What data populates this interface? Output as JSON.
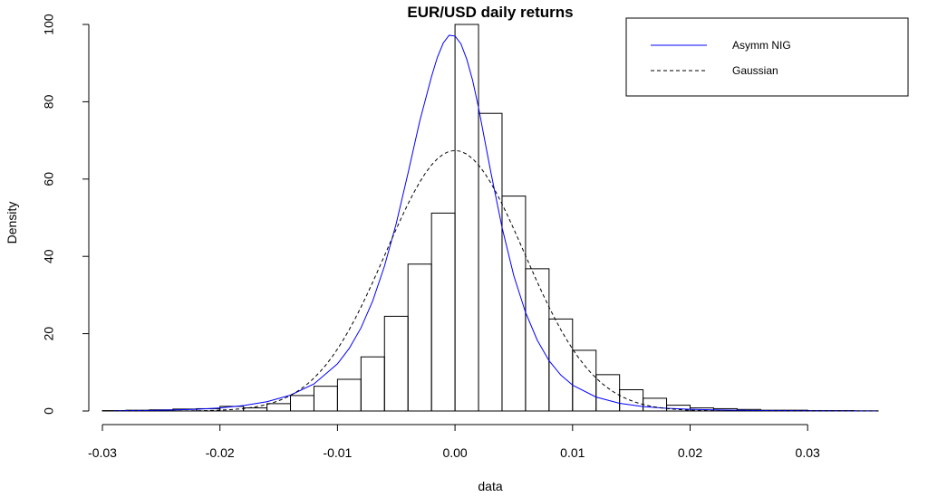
{
  "chart_data": {
    "type": "bar",
    "title": "EUR/USD daily returns",
    "xlabel": "data",
    "ylabel": "Density",
    "xlim": [
      -0.03,
      0.036
    ],
    "ylim": [
      0,
      100
    ],
    "x_ticks": [
      -0.03,
      -0.02,
      -0.01,
      0.0,
      0.01,
      0.02,
      0.03
    ],
    "x_tick_labels": [
      "-0.03",
      "-0.02",
      "-0.01",
      "0.00",
      "0.01",
      "0.02",
      "0.03"
    ],
    "y_ticks": [
      0,
      20,
      40,
      60,
      80,
      100
    ],
    "y_tick_labels": [
      "0",
      "20",
      "40",
      "60",
      "80",
      "100"
    ],
    "histogram": {
      "bin_width": 0.002,
      "bin_start": -0.03,
      "density": [
        0.1,
        0.2,
        0.3,
        0.5,
        0.6,
        1.2,
        0.8,
        1.9,
        4.0,
        6.4,
        8.2,
        14.0,
        24.5,
        38.0,
        51.2,
        100,
        77.0,
        55.6,
        36.8,
        23.8,
        15.7,
        9.4,
        5.5,
        3.3,
        1.5,
        0.8,
        0.6,
        0.4,
        0.2,
        0.2,
        0.1,
        0.1,
        0.05
      ]
    },
    "series": [
      {
        "name": "Asymm NIG",
        "style": "solid",
        "color": "#0000ff",
        "x": [
          -0.029,
          -0.026,
          -0.024,
          -0.022,
          -0.02,
          -0.018,
          -0.016,
          -0.014,
          -0.012,
          -0.01,
          -0.009,
          -0.008,
          -0.007,
          -0.006,
          -0.005,
          -0.004,
          -0.003,
          -0.002,
          -0.0015,
          -0.001,
          -0.0005,
          0.0,
          0.0005,
          0.001,
          0.0015,
          0.002,
          0.003,
          0.004,
          0.005,
          0.006,
          0.007,
          0.008,
          0.009,
          0.01,
          0.012,
          0.014,
          0.016,
          0.018,
          0.02,
          0.022,
          0.025,
          0.028,
          0.032,
          0.036
        ],
        "y": [
          0.05,
          0.15,
          0.25,
          0.45,
          0.8,
          1.4,
          2.4,
          4.1,
          7.0,
          12.2,
          16.2,
          21.5,
          28.5,
          37.5,
          48.5,
          61.5,
          75.0,
          86.5,
          91.5,
          95.2,
          97.2,
          97.0,
          95.0,
          91.0,
          85.5,
          78.5,
          62.5,
          47.5,
          35.0,
          25.5,
          18.3,
          13.0,
          9.3,
          6.7,
          3.6,
          2.0,
          1.15,
          0.7,
          0.45,
          0.28,
          0.15,
          0.08,
          0.03,
          0.01
        ]
      },
      {
        "name": "Gaussian",
        "style": "dashed",
        "color": "#000000",
        "mean": 0.0,
        "sd": 0.0059,
        "peak": 67.4
      }
    ],
    "legend": {
      "placement": "top-right",
      "entries": [
        "Asymm NIG",
        "Gaussian"
      ]
    },
    "grid": false
  }
}
